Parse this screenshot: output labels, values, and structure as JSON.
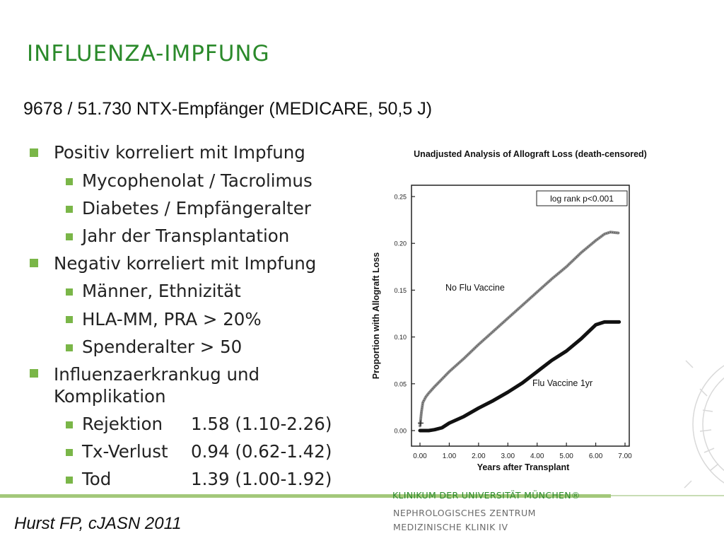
{
  "slide": {
    "title": "INFLUENZA-IMPFUNG",
    "subtitle": "9678 / 51.730 NTX-Empfänger (MEDICARE, 50,5 J)",
    "citation": "Hurst FP, cJASN 2011"
  },
  "bullets": {
    "pos": "Positiv korreliert mit Impfung",
    "pos_1": "Mycophenolat / Tacrolimus",
    "pos_2": "Diabetes / Empfängeralter",
    "pos_3": "Jahr der Transplantation",
    "neg": "Negativ korreliert mit Impfung",
    "neg_1": "Männer, Ethnizität",
    "neg_2": "HLA-MM, PRA > 20%",
    "neg_3": "Spenderalter > 50",
    "infl_line1": "Influenzaerkrankug und",
    "infl_line2": "Komplikation",
    "rows": [
      {
        "label": "Rejektion",
        "value": "1.58 (1.10-2.26)"
      },
      {
        "label": "Tx-Verlust",
        "value": "0.94 (0.62-1.42)"
      },
      {
        "label": "Tod",
        "value": "1.39 (1.00-1.92)"
      }
    ]
  },
  "footer": {
    "klinikum": "KLINIKUM DER UNIVERSITÄT MÜNCHEN®",
    "zentrum": "NEPHROLOGISCHES ZENTRUM",
    "klinik": "MEDIZINISCHE KLINIK IV"
  },
  "colors": {
    "accent_green": "#2b8a2b",
    "bullet_green": "#7ab648",
    "footer_line": "#a3c87a"
  },
  "chart_data": {
    "type": "line",
    "title": "Unadjusted Analysis of Allograft Loss (death-censored)",
    "xlabel": "Years after Transplant",
    "ylabel": "Proportion with Allograft Loss",
    "xlim": [
      0,
      7
    ],
    "ylim": [
      0,
      0.25
    ],
    "xticks": [
      "0.00",
      "1.00",
      "2.00",
      "3.00",
      "4.00",
      "5.00",
      "6.00",
      "7.00"
    ],
    "yticks": [
      "0.00",
      "0.05",
      "0.10",
      "0.15",
      "0.20",
      "0.25"
    ],
    "annotation": "log rank p<0.001",
    "grid": false,
    "series": [
      {
        "name": "No Flu Vaccine",
        "x": [
          0,
          0.05,
          0.1,
          0.2,
          0.3,
          0.5,
          0.75,
          1.0,
          1.5,
          2.0,
          2.5,
          3.0,
          3.5,
          4.0,
          4.5,
          5.0,
          5.5,
          6.0,
          6.3,
          6.5,
          6.8
        ],
        "y": [
          0.005,
          0.02,
          0.03,
          0.036,
          0.04,
          0.047,
          0.055,
          0.063,
          0.077,
          0.092,
          0.106,
          0.12,
          0.134,
          0.148,
          0.162,
          0.175,
          0.19,
          0.203,
          0.21,
          0.212,
          0.211
        ]
      },
      {
        "name": "Flu Vaccine 1yr",
        "x": [
          0,
          0.3,
          0.5,
          0.75,
          1.0,
          1.5,
          2.0,
          2.5,
          3.0,
          3.5,
          4.0,
          4.5,
          5.0,
          5.5,
          5.8,
          6.0,
          6.3,
          6.5,
          6.8
        ],
        "y": [
          0.0,
          0.0,
          0.001,
          0.003,
          0.008,
          0.015,
          0.024,
          0.032,
          0.041,
          0.051,
          0.063,
          0.075,
          0.085,
          0.098,
          0.107,
          0.113,
          0.116,
          0.116,
          0.116
        ]
      }
    ]
  }
}
